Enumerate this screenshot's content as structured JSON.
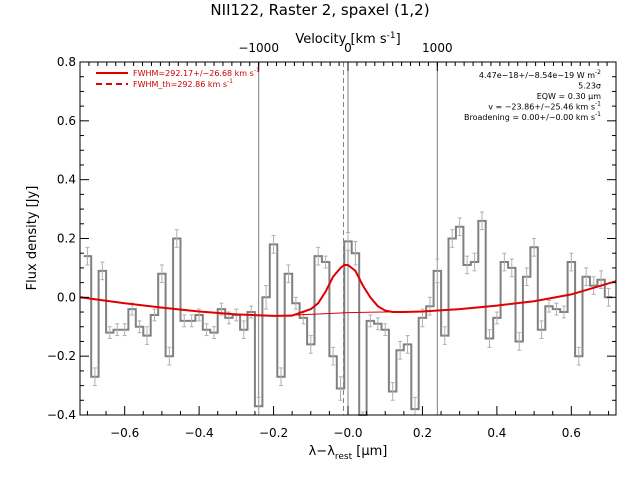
{
  "chart_data": {
    "type": "line",
    "title": "NII122, Raster 2, spaxel (1,2)",
    "xlabel_main": "λ−λ",
    "xlabel_sub": "rest",
    "xlabel_unit": " [μm]",
    "ylabel": "Flux density [Jy]",
    "top_axis_label": "Velocity [km s",
    "top_axis_sup": "-1",
    "top_axis_close": "]",
    "xlim": [
      -0.72,
      0.72
    ],
    "ylim": [
      -0.4,
      0.8
    ],
    "x_ticks": [
      -0.6,
      -0.4,
      -0.2,
      0.0,
      0.2,
      0.4,
      0.6
    ],
    "x_tick_labels": [
      "−0.6",
      "−0.4",
      "−0.2",
      "−0.0",
      "0.2",
      "0.4",
      "0.6"
    ],
    "y_ticks": [
      -0.4,
      -0.2,
      0.0,
      0.2,
      0.4,
      0.6,
      0.8
    ],
    "y_tick_labels": [
      "−0.4",
      "−0.2",
      "0.0",
      "0.2",
      "0.4",
      "0.6",
      "0.8"
    ],
    "top_ticks_um": [
      -0.24,
      0.0,
      0.24
    ],
    "top_tick_labels": [
      "−1000",
      "0",
      "1000"
    ],
    "vertical_lines_um": [
      -0.24,
      0.0,
      0.24
    ],
    "dashed_line_um": -0.012,
    "series": [
      {
        "name": "Flux spectrum",
        "style": "histogram",
        "x": [
          -0.7,
          -0.68,
          -0.66,
          -0.64,
          -0.62,
          -0.6,
          -0.58,
          -0.56,
          -0.54,
          -0.52,
          -0.5,
          -0.48,
          -0.46,
          -0.44,
          -0.42,
          -0.4,
          -0.38,
          -0.36,
          -0.34,
          -0.32,
          -0.3,
          -0.28,
          -0.26,
          -0.24,
          -0.22,
          -0.2,
          -0.18,
          -0.16,
          -0.14,
          -0.12,
          -0.1,
          -0.08,
          -0.06,
          -0.04,
          -0.02,
          0.0,
          0.02,
          0.04,
          0.06,
          0.08,
          0.1,
          0.12,
          0.14,
          0.16,
          0.18,
          0.2,
          0.22,
          0.24,
          0.26,
          0.28,
          0.3,
          0.32,
          0.34,
          0.36,
          0.38,
          0.4,
          0.42,
          0.44,
          0.46,
          0.48,
          0.5,
          0.52,
          0.54,
          0.56,
          0.58,
          0.6,
          0.62,
          0.64,
          0.66,
          0.68,
          0.7
        ],
        "y": [
          0.14,
          -0.27,
          0.09,
          -0.12,
          -0.11,
          -0.11,
          -0.04,
          -0.1,
          -0.13,
          -0.06,
          0.08,
          -0.2,
          0.2,
          -0.08,
          -0.08,
          -0.06,
          -0.11,
          -0.12,
          -0.04,
          -0.07,
          -0.06,
          -0.11,
          -0.05,
          -0.37,
          0.0,
          0.18,
          -0.27,
          0.08,
          -0.02,
          -0.07,
          -0.16,
          0.14,
          0.12,
          -0.2,
          -0.31,
          0.19,
          0.15,
          -0.42,
          -0.08,
          -0.09,
          -0.11,
          -0.32,
          -0.18,
          -0.16,
          -0.38,
          -0.07,
          -0.03,
          0.09,
          -0.13,
          0.2,
          0.24,
          0.11,
          0.12,
          0.26,
          -0.14,
          -0.07,
          0.12,
          0.1,
          -0.15,
          0.07,
          0.17,
          -0.11,
          -0.03,
          -0.04,
          -0.05,
          0.12,
          -0.2,
          0.07,
          0.04,
          0.06,
          0.0
        ],
        "err": [
          0.03,
          0.03,
          0.03,
          0.02,
          0.02,
          0.02,
          0.02,
          0.02,
          0.03,
          0.02,
          0.03,
          0.03,
          0.03,
          0.02,
          0.02,
          0.02,
          0.02,
          0.02,
          0.02,
          0.02,
          0.02,
          0.03,
          0.02,
          0.03,
          0.04,
          0.03,
          0.03,
          0.03,
          0.02,
          0.02,
          0.03,
          0.03,
          0.02,
          0.03,
          0.04,
          0.03,
          0.04,
          0.03,
          0.02,
          0.02,
          0.02,
          0.03,
          0.03,
          0.03,
          0.04,
          0.03,
          0.03,
          0.04,
          0.03,
          0.03,
          0.03,
          0.03,
          0.03,
          0.03,
          0.03,
          0.02,
          0.03,
          0.03,
          0.03,
          0.03,
          0.03,
          0.03,
          0.02,
          0.02,
          0.02,
          0.03,
          0.03,
          0.03,
          0.03,
          0.03,
          0.03
        ],
        "color": "#808080"
      },
      {
        "name": "FWHM=292.17+/-26.68 km s",
        "style": "line",
        "x": [
          -0.72,
          -0.6,
          -0.5,
          -0.4,
          -0.3,
          -0.2,
          -0.15,
          -0.1,
          -0.08,
          -0.06,
          -0.04,
          -0.02,
          -0.01,
          0.0,
          0.02,
          0.04,
          0.06,
          0.08,
          0.1,
          0.12,
          0.15,
          0.2,
          0.3,
          0.4,
          0.5,
          0.6,
          0.72
        ],
        "y": [
          0.0,
          -0.02,
          -0.035,
          -0.048,
          -0.058,
          -0.063,
          -0.062,
          -0.04,
          -0.02,
          0.02,
          0.07,
          0.1,
          0.11,
          0.11,
          0.09,
          0.04,
          0.0,
          -0.03,
          -0.045,
          -0.05,
          -0.05,
          -0.048,
          -0.04,
          -0.028,
          -0.013,
          0.01,
          0.055
        ],
        "color": "#e00000"
      },
      {
        "name": "FWHM_th=292.86 km s",
        "style": "line",
        "x": [
          -0.72,
          -0.6,
          -0.5,
          -0.4,
          -0.3,
          -0.2,
          -0.1,
          0.0,
          0.1,
          0.2,
          0.3,
          0.4,
          0.5,
          0.6,
          0.72
        ],
        "y": [
          0.0,
          -0.02,
          -0.035,
          -0.048,
          -0.058,
          -0.063,
          -0.058,
          -0.052,
          -0.05,
          -0.048,
          -0.04,
          -0.028,
          -0.013,
          0.01,
          0.055
        ],
        "color": "#e00000"
      }
    ],
    "legend": [
      {
        "text": "FWHM=292.17+/−26.68 km s",
        "sup": "-1",
        "style": "solid",
        "color": "#e00000"
      },
      {
        "text": "FWHM_th=292.86 km s",
        "sup": "-1",
        "style": "dashed",
        "color": "#e00000"
      }
    ],
    "annotations": [
      {
        "text": "4.47e−18+/−8.54e−19 W m",
        "sup": "-2"
      },
      {
        "text": "5.23σ",
        "sup": ""
      },
      {
        "text": "EQW = 0.30 μm",
        "sup": ""
      },
      {
        "text": "v = −23.86+/−25.46 km s",
        "sup": "-1"
      },
      {
        "text": "Broadening = 0.00+/−0.00 km s",
        "sup": "-1"
      }
    ]
  }
}
